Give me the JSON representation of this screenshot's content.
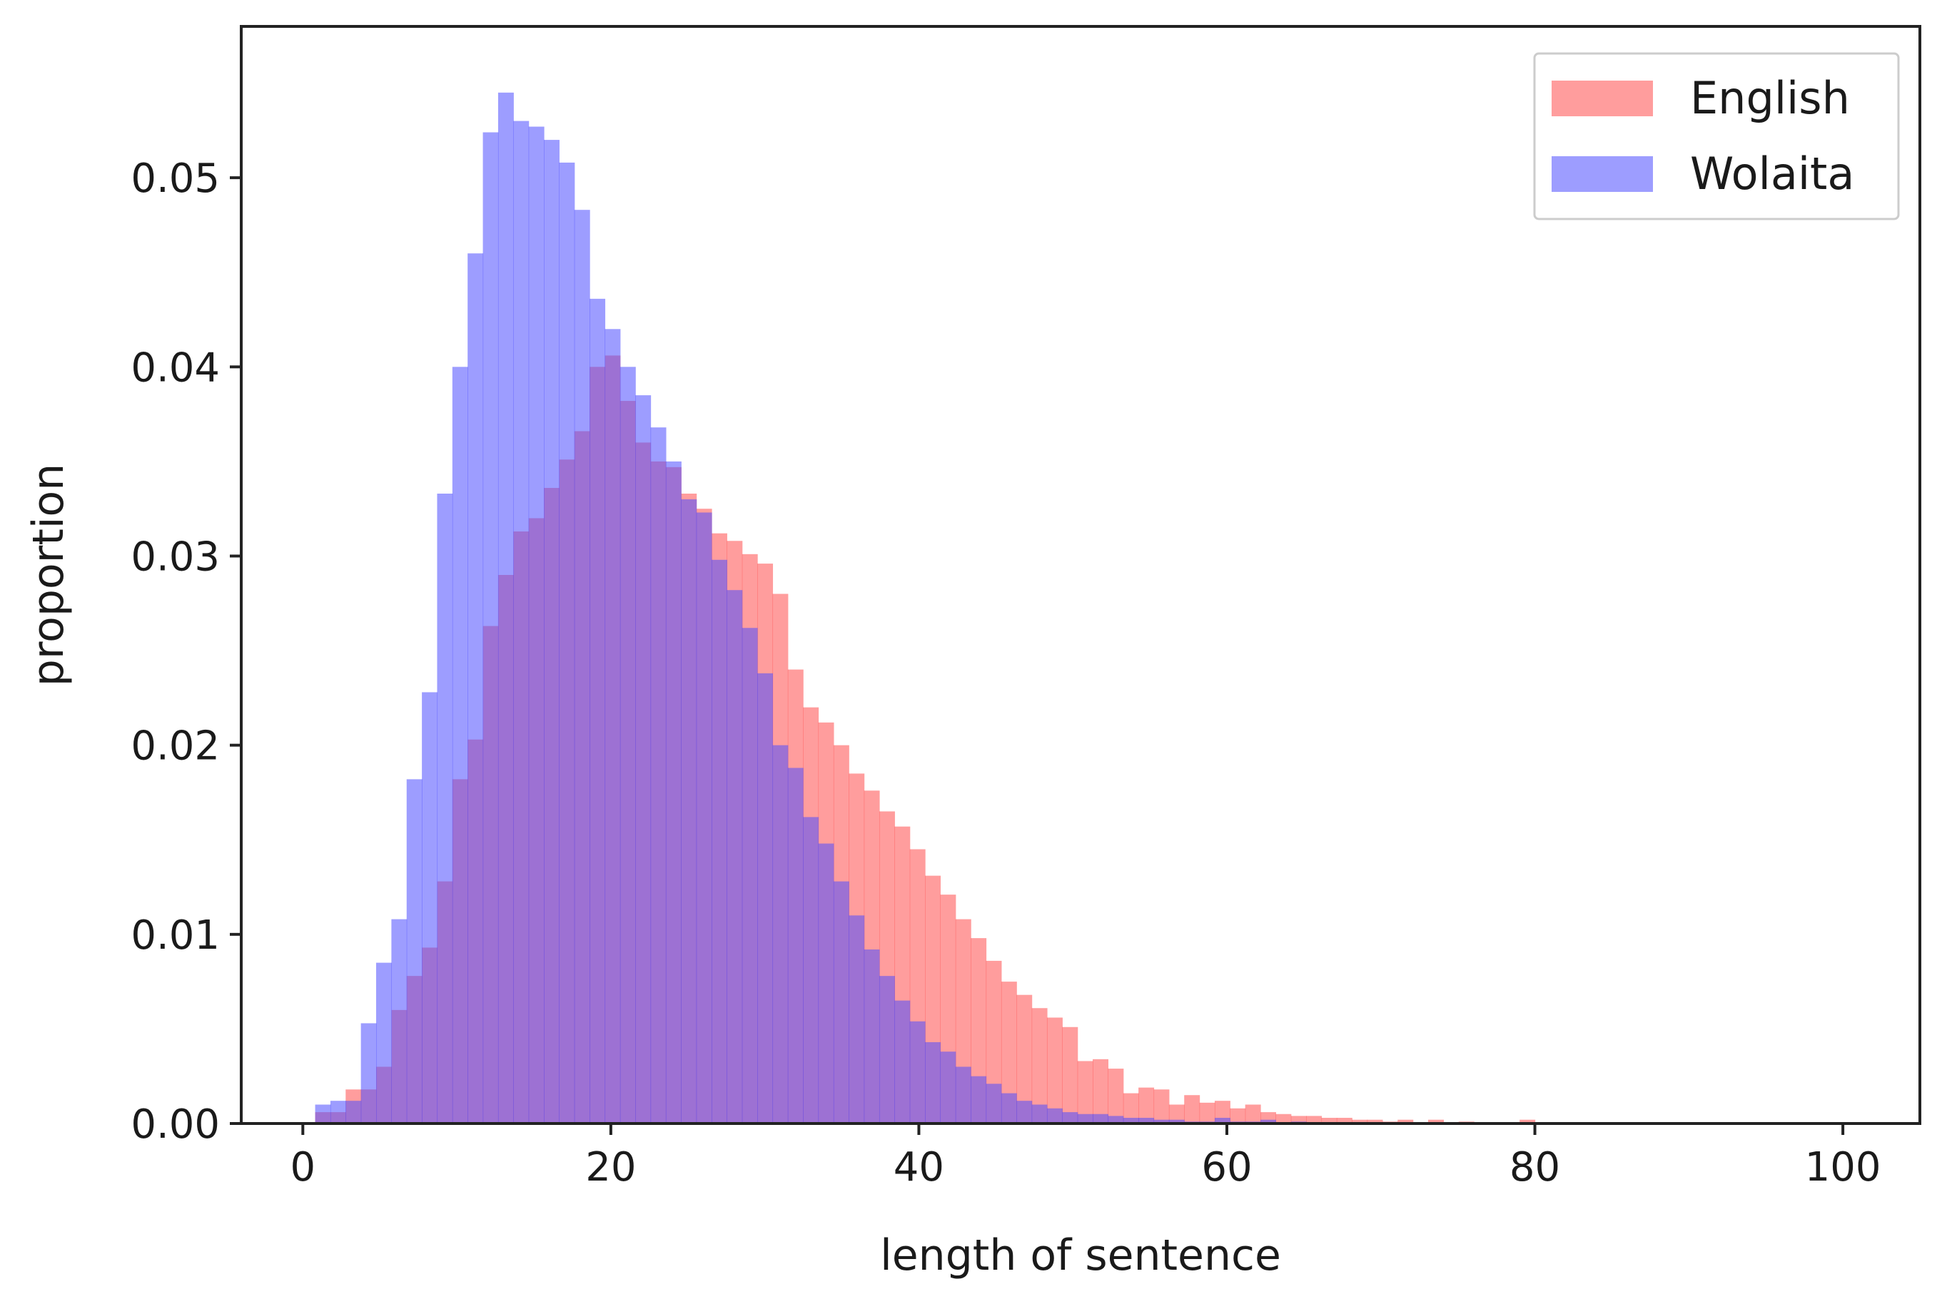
{
  "chart_data": {
    "type": "bar",
    "subtype": "histogram",
    "title": "",
    "xlabel": "length of sentence",
    "ylabel": "proportion",
    "xlim": [
      -4,
      105
    ],
    "ylim": [
      0,
      0.058
    ],
    "xticks": [
      0,
      20,
      40,
      60,
      80,
      100
    ],
    "xtick_labels": [
      "0",
      "20",
      "40",
      "60",
      "80",
      "100"
    ],
    "yticks": [
      0.0,
      0.01,
      0.02,
      0.03,
      0.04,
      0.05
    ],
    "ytick_labels": [
      "0.00",
      "0.01",
      "0.02",
      "0.03",
      "0.04",
      "0.05"
    ],
    "bin_width": 0.99,
    "bin_start": 0.8,
    "grid": false,
    "legend_position": "top-right",
    "series": [
      {
        "name": "English",
        "color": "#ff4d4d",
        "opacity": 0.55,
        "values": [
          0.0006,
          0.0006,
          0.0018,
          0.0018,
          0.003,
          0.006,
          0.0078,
          0.0093,
          0.0128,
          0.0182,
          0.0203,
          0.0263,
          0.029,
          0.0313,
          0.032,
          0.0336,
          0.0351,
          0.0366,
          0.04,
          0.0406,
          0.0382,
          0.036,
          0.035,
          0.0347,
          0.0333,
          0.0325,
          0.0312,
          0.0308,
          0.0301,
          0.0296,
          0.028,
          0.024,
          0.022,
          0.0212,
          0.02,
          0.0185,
          0.0176,
          0.0165,
          0.0157,
          0.0145,
          0.0131,
          0.0121,
          0.0108,
          0.0098,
          0.0086,
          0.0075,
          0.0068,
          0.0061,
          0.0056,
          0.0051,
          0.0033,
          0.0034,
          0.0029,
          0.0016,
          0.0019,
          0.0018,
          0.001,
          0.0015,
          0.0011,
          0.0012,
          0.0008,
          0.001,
          0.0006,
          0.0005,
          0.0004,
          0.0004,
          0.0003,
          0.0003,
          0.0002,
          0.0002,
          0.0001,
          0.0002,
          0.0,
          0.0002,
          0.0,
          0.0001,
          0.0,
          0.0,
          0.0,
          0.0002
        ]
      },
      {
        "name": "Wolaita",
        "color": "#4d4dff",
        "opacity": 0.55,
        "values": [
          0.001,
          0.0012,
          0.0012,
          0.0053,
          0.0085,
          0.0108,
          0.0182,
          0.0228,
          0.0333,
          0.04,
          0.046,
          0.0524,
          0.0545,
          0.053,
          0.0527,
          0.052,
          0.0508,
          0.0483,
          0.0436,
          0.042,
          0.04,
          0.0385,
          0.0368,
          0.035,
          0.033,
          0.0323,
          0.0298,
          0.0282,
          0.0262,
          0.0238,
          0.02,
          0.0188,
          0.0162,
          0.0148,
          0.0128,
          0.011,
          0.0092,
          0.0078,
          0.0065,
          0.0054,
          0.0043,
          0.0038,
          0.003,
          0.0025,
          0.0021,
          0.0016,
          0.0012,
          0.001,
          0.0008,
          0.0006,
          0.0005,
          0.0005,
          0.0004,
          0.0003,
          0.0003,
          0.0002,
          0.0002,
          0.0001,
          0.0001,
          0.0003,
          0.0001,
          0.0001,
          0.0002,
          0.0,
          0.0001
        ]
      }
    ]
  }
}
